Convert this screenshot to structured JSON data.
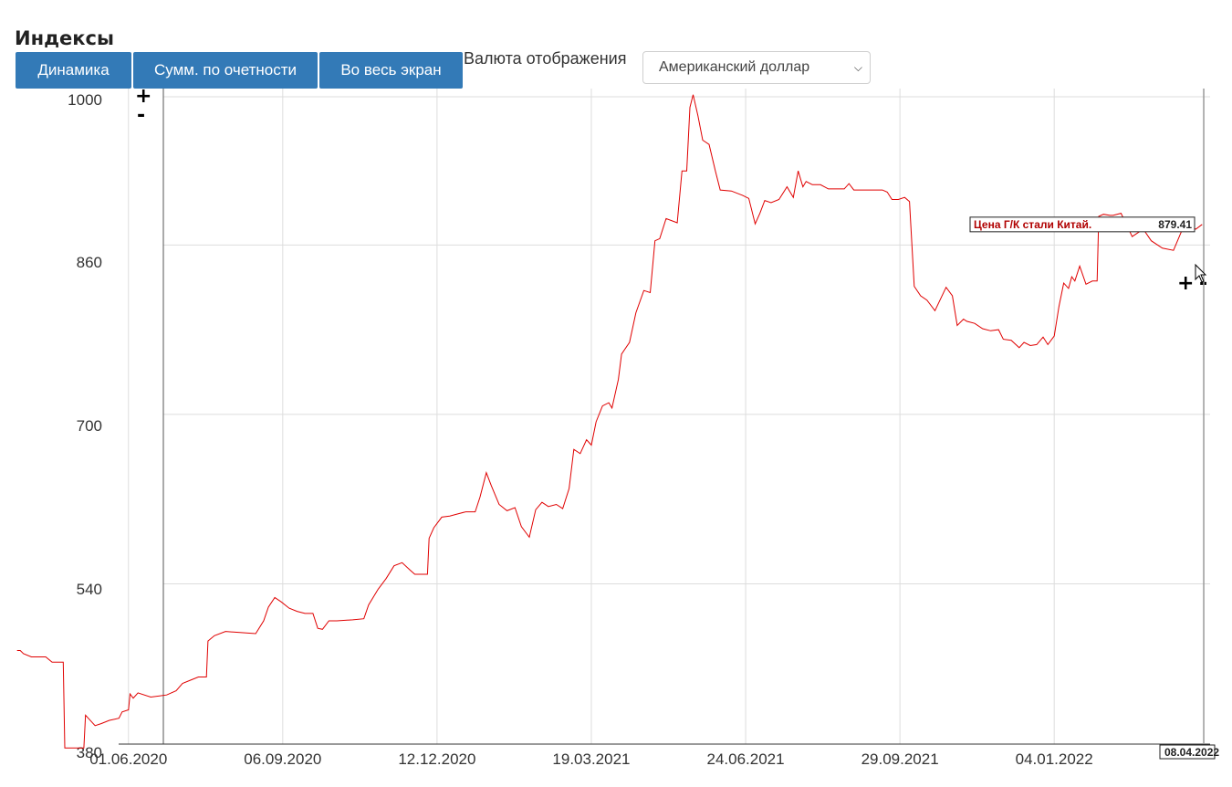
{
  "header": {
    "title": "Индексы",
    "buttons": [
      "Динамика",
      "Сумм. по очетности",
      "Во весь экран"
    ],
    "currency_label": "Валюта отображения",
    "currency_value": "Американский доллар"
  },
  "controls": {
    "zoom_in": "+",
    "zoom_out": "-"
  },
  "colors": {
    "series": "#e00000",
    "button": "#337ab7",
    "grid": "#dddddd"
  },
  "chart_data": {
    "type": "line",
    "series": [
      {
        "name": "Цена Г/К стали Китай.",
        "points": [
          [
            "2020-03-23",
            477
          ],
          [
            "2020-03-25",
            477
          ],
          [
            "2020-03-27",
            474
          ],
          [
            "2020-04-01",
            471
          ],
          [
            "2020-04-10",
            471
          ],
          [
            "2020-04-14",
            466
          ],
          [
            "2020-04-21",
            466
          ],
          [
            "2020-04-22",
            385
          ],
          [
            "2020-05-04",
            385
          ],
          [
            "2020-05-05",
            416
          ],
          [
            "2020-05-11",
            406
          ],
          [
            "2020-05-15",
            408
          ],
          [
            "2020-05-20",
            411
          ],
          [
            "2020-05-26",
            413
          ],
          [
            "2020-05-28",
            419
          ],
          [
            "2020-06-01",
            421
          ],
          [
            "2020-06-02",
            436
          ],
          [
            "2020-06-04",
            432
          ],
          [
            "2020-06-07",
            437
          ],
          [
            "2020-06-15",
            433
          ],
          [
            "2020-06-25",
            435
          ],
          [
            "2020-07-01",
            439
          ],
          [
            "2020-07-05",
            446
          ],
          [
            "2020-07-10",
            449
          ],
          [
            "2020-07-15",
            452
          ],
          [
            "2020-07-20",
            452
          ],
          [
            "2020-07-21",
            486
          ],
          [
            "2020-07-25",
            491
          ],
          [
            "2020-08-01",
            495
          ],
          [
            "2020-08-10",
            494
          ],
          [
            "2020-08-20",
            493
          ],
          [
            "2020-08-25",
            505
          ],
          [
            "2020-08-28",
            518
          ],
          [
            "2020-09-01",
            527
          ],
          [
            "2020-09-05",
            523
          ],
          [
            "2020-09-10",
            517
          ],
          [
            "2020-09-15",
            514
          ],
          [
            "2020-09-20",
            512
          ],
          [
            "2020-09-25",
            512
          ],
          [
            "2020-09-28",
            498
          ],
          [
            "2020-10-01",
            497
          ],
          [
            "2020-10-05",
            505
          ],
          [
            "2020-10-10",
            505
          ],
          [
            "2020-10-20",
            506
          ],
          [
            "2020-10-27",
            507
          ],
          [
            "2020-10-30",
            520
          ],
          [
            "2020-11-05",
            535
          ],
          [
            "2020-11-10",
            545
          ],
          [
            "2020-11-15",
            557
          ],
          [
            "2020-11-20",
            560
          ],
          [
            "2020-11-25",
            553
          ],
          [
            "2020-11-28",
            549
          ],
          [
            "2020-12-01",
            549
          ],
          [
            "2020-12-06",
            549
          ],
          [
            "2020-12-07",
            583
          ],
          [
            "2020-12-10",
            593
          ],
          [
            "2020-12-15",
            603
          ],
          [
            "2020-12-20",
            604
          ],
          [
            "2020-12-25",
            606
          ],
          [
            "2020-12-30",
            608
          ],
          [
            "2021-01-05",
            608
          ],
          [
            "2021-01-08",
            622
          ],
          [
            "2021-01-12",
            645
          ],
          [
            "2021-01-15",
            633
          ],
          [
            "2021-01-20",
            615
          ],
          [
            "2021-01-25",
            609
          ],
          [
            "2021-01-30",
            612
          ],
          [
            "2021-02-03",
            594
          ],
          [
            "2021-02-08",
            584
          ],
          [
            "2021-02-12",
            610
          ],
          [
            "2021-02-16",
            617
          ],
          [
            "2021-02-20",
            613
          ],
          [
            "2021-02-25",
            615
          ],
          [
            "2021-03-01",
            611
          ],
          [
            "2021-03-05",
            630
          ],
          [
            "2021-03-08",
            667
          ],
          [
            "2021-03-12",
            663
          ],
          [
            "2021-03-16",
            676
          ],
          [
            "2021-03-19",
            671
          ],
          [
            "2021-03-22",
            693
          ],
          [
            "2021-03-26",
            708
          ],
          [
            "2021-03-30",
            711
          ],
          [
            "2021-04-01",
            706
          ],
          [
            "2021-04-05",
            733
          ],
          [
            "2021-04-07",
            757
          ],
          [
            "2021-04-12",
            768
          ],
          [
            "2021-04-16",
            796
          ],
          [
            "2021-04-21",
            817
          ],
          [
            "2021-04-25",
            815
          ],
          [
            "2021-04-28",
            864
          ],
          [
            "2021-05-01",
            866
          ],
          [
            "2021-05-05",
            885
          ],
          [
            "2021-05-12",
            881
          ],
          [
            "2021-05-15",
            930
          ],
          [
            "2021-05-18",
            930
          ],
          [
            "2021-05-20",
            990
          ],
          [
            "2021-05-22",
            1002
          ],
          [
            "2021-05-25",
            982
          ],
          [
            "2021-05-28",
            959
          ],
          [
            "2021-06-01",
            955
          ],
          [
            "2021-06-05",
            930
          ],
          [
            "2021-06-08",
            912
          ],
          [
            "2021-06-15",
            911
          ],
          [
            "2021-06-22",
            907
          ],
          [
            "2021-06-26",
            904
          ],
          [
            "2021-06-30",
            880
          ],
          [
            "2021-07-03",
            890
          ],
          [
            "2021-07-06",
            902
          ],
          [
            "2021-07-10",
            900
          ],
          [
            "2021-07-15",
            903
          ],
          [
            "2021-07-20",
            915
          ],
          [
            "2021-07-24",
            905
          ],
          [
            "2021-07-27",
            930
          ],
          [
            "2021-07-30",
            915
          ],
          [
            "2021-08-01",
            920
          ],
          [
            "2021-08-05",
            917
          ],
          [
            "2021-08-10",
            917
          ],
          [
            "2021-08-15",
            913
          ],
          [
            "2021-08-20",
            913
          ],
          [
            "2021-08-25",
            913
          ],
          [
            "2021-08-28",
            918
          ],
          [
            "2021-08-31",
            912
          ],
          [
            "2021-09-05",
            912
          ],
          [
            "2021-09-12",
            912
          ],
          [
            "2021-09-18",
            912
          ],
          [
            "2021-09-21",
            910
          ],
          [
            "2021-09-24",
            903
          ],
          [
            "2021-09-28",
            903
          ],
          [
            "2021-10-02",
            905
          ],
          [
            "2021-10-05",
            901
          ],
          [
            "2021-10-08",
            821
          ],
          [
            "2021-10-12",
            812
          ],
          [
            "2021-10-16",
            808
          ],
          [
            "2021-10-21",
            798
          ],
          [
            "2021-10-28",
            820
          ],
          [
            "2021-11-01",
            812
          ],
          [
            "2021-11-04",
            784
          ],
          [
            "2021-11-08",
            790
          ],
          [
            "2021-11-10",
            788
          ],
          [
            "2021-11-15",
            786
          ],
          [
            "2021-11-20",
            781
          ],
          [
            "2021-11-25",
            779
          ],
          [
            "2021-11-30",
            780
          ],
          [
            "2021-12-03",
            771
          ],
          [
            "2021-12-08",
            770
          ],
          [
            "2021-12-13",
            763
          ],
          [
            "2021-12-16",
            768
          ],
          [
            "2021-12-20",
            765
          ],
          [
            "2021-12-24",
            766
          ],
          [
            "2021-12-28",
            773
          ],
          [
            "2021-12-31",
            766
          ],
          [
            "2022-01-04",
            774
          ],
          [
            "2022-01-07",
            802
          ],
          [
            "2022-01-10",
            824
          ],
          [
            "2022-01-13",
            819
          ],
          [
            "2022-01-15",
            830
          ],
          [
            "2022-01-17",
            826
          ],
          [
            "2022-01-20",
            840
          ],
          [
            "2022-01-24",
            823
          ],
          [
            "2022-01-28",
            826
          ],
          [
            "2022-01-31",
            826
          ],
          [
            "2022-02-01",
            887
          ],
          [
            "2022-02-04",
            889
          ],
          [
            "2022-02-08",
            888
          ],
          [
            "2022-02-10",
            888
          ],
          [
            "2022-02-15",
            890
          ],
          [
            "2022-02-22",
            868
          ],
          [
            "2022-03-01",
            875
          ],
          [
            "2022-03-06",
            864
          ],
          [
            "2022-03-13",
            857
          ],
          [
            "2022-03-20",
            855
          ],
          [
            "2022-03-27",
            880
          ],
          [
            "2022-04-03",
            875
          ],
          [
            "2022-04-07",
            879.41
          ]
        ]
      }
    ],
    "x_start": "2020-03-22",
    "x_end": "2022-04-12",
    "x_ticks": [
      "01.06.2020",
      "06.09.2020",
      "12.12.2020",
      "19.03.2021",
      "24.06.2021",
      "29.09.2021",
      "04.01.2022"
    ],
    "y_ticks": [
      380,
      540,
      700,
      860,
      1000
    ],
    "ylim": [
      380,
      1000
    ],
    "grid": true,
    "cursor_date": "08.04.2022",
    "tooltip": {
      "name": "Цена Г/К стали Китай.",
      "value": "879.41"
    }
  }
}
